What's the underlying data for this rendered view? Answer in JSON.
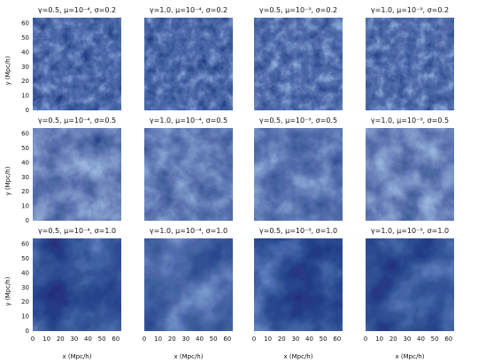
{
  "figure": {
    "ylabel": "y (Mpc/h)",
    "xlabel": "x (Mpc/h)",
    "yticks": [
      "0",
      "10",
      "20",
      "30",
      "40",
      "50",
      "60"
    ],
    "xticks": [
      "0",
      "10",
      "20",
      "30",
      "40",
      "50",
      "60"
    ],
    "colors": {
      "dark": "#081a6a",
      "mid": "#2f7fe6",
      "light": "#eaf3ff",
      "background": "#ffffff"
    },
    "panels": [
      {
        "title": "γ=0.5, μ=10⁻⁴, σ=0.2",
        "gamma": 0.5,
        "mu": "10⁻⁴",
        "sigma": 0.2,
        "shading": 0.42,
        "grain": "fine"
      },
      {
        "title": "γ=1.0, μ=10⁻⁴, σ=0.2",
        "gamma": 1.0,
        "mu": "10⁻⁴",
        "sigma": 0.2,
        "shading": 0.44,
        "grain": "fine"
      },
      {
        "title": "γ=0.5, μ=10⁻⁹, σ=0.2",
        "gamma": 0.5,
        "mu": "10⁻⁹",
        "sigma": 0.2,
        "shading": 0.36,
        "grain": "fine"
      },
      {
        "title": "γ=1.0, μ=10⁻⁹, σ=0.2",
        "gamma": 1.0,
        "mu": "10⁻⁹",
        "sigma": 0.2,
        "shading": 0.38,
        "grain": "fine"
      },
      {
        "title": "γ=0.5, μ=10⁻⁴, σ=0.5",
        "gamma": 0.5,
        "mu": "10⁻⁴",
        "sigma": 0.5,
        "shading": 0.18,
        "grain": "medium"
      },
      {
        "title": "γ=1.0, μ=10⁻⁴, σ=0.5",
        "gamma": 1.0,
        "mu": "10⁻⁴",
        "sigma": 0.5,
        "shading": 0.24,
        "grain": "medium"
      },
      {
        "title": "γ=0.5, μ=10⁻⁹, σ=0.5",
        "gamma": 0.5,
        "mu": "10⁻⁹",
        "sigma": 0.5,
        "shading": 0.3,
        "grain": "medium"
      },
      {
        "title": "γ=1.0, μ=10⁻⁹, σ=0.5",
        "gamma": 1.0,
        "mu": "10⁻⁹",
        "sigma": 0.5,
        "shading": 0.16,
        "grain": "medium"
      },
      {
        "title": "γ=0.5, μ=10⁻⁴, σ=1.0",
        "gamma": 0.5,
        "mu": "10⁻⁴",
        "sigma": 1.0,
        "shading": 0.62,
        "grain": "coarse"
      },
      {
        "title": "γ=1.0, μ=10⁻⁴, σ=1.0",
        "gamma": 1.0,
        "mu": "10⁻⁴",
        "sigma": 1.0,
        "shading": 0.48,
        "grain": "coarse"
      },
      {
        "title": "γ=0.5, μ=10⁻⁹, σ=1.0",
        "gamma": 0.5,
        "mu": "10⁻⁹",
        "sigma": 1.0,
        "shading": 0.7,
        "grain": "coarse"
      },
      {
        "title": "γ=1.0, μ=10⁻⁹, σ=1.0",
        "gamma": 1.0,
        "mu": "10⁻⁹",
        "sigma": 1.0,
        "shading": 0.62,
        "grain": "coarse"
      }
    ]
  }
}
